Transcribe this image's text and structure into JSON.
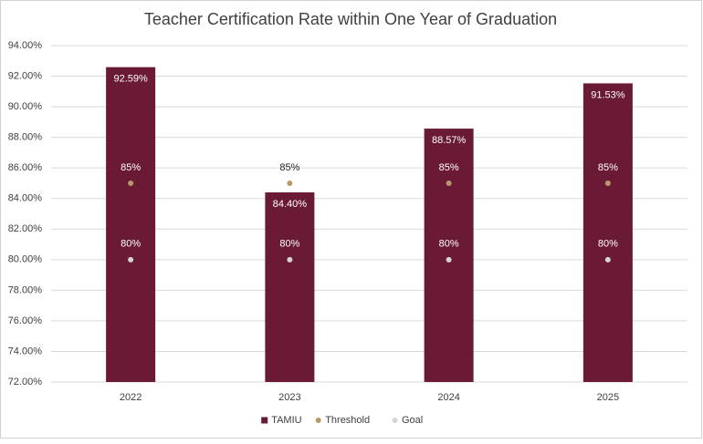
{
  "chart_data": {
    "type": "bar",
    "title": "Teacher Certification Rate within One Year of Graduation",
    "categories": [
      "2022",
      "2023",
      "2024",
      "2025"
    ],
    "series": [
      {
        "name": "TAMIU",
        "type": "bar",
        "color": "#6b1a35",
        "values": [
          92.59,
          84.4,
          88.57,
          91.53
        ],
        "value_labels": [
          "92.59%",
          "84.40%",
          "88.57%",
          "91.53%"
        ]
      },
      {
        "name": "Threshold",
        "type": "scatter",
        "color": "#b8996a",
        "values": [
          85,
          85,
          85,
          85
        ],
        "value_labels": [
          "85%",
          "85%",
          "85%",
          "85%"
        ]
      },
      {
        "name": "Goal",
        "type": "scatter",
        "color": "#d4d4d4",
        "values": [
          80,
          80,
          80,
          80
        ],
        "value_labels": [
          "80%",
          "80%",
          "80%",
          "80%"
        ]
      }
    ],
    "ylim": [
      72,
      94
    ],
    "yticks": [
      {
        "value": 72,
        "label": "72.00%"
      },
      {
        "value": 74,
        "label": "74.00%"
      },
      {
        "value": 76,
        "label": "76.00%"
      },
      {
        "value": 78,
        "label": "78.00%"
      },
      {
        "value": 80,
        "label": "80.00%"
      },
      {
        "value": 82,
        "label": "82.00%"
      },
      {
        "value": 84,
        "label": "84.00%"
      },
      {
        "value": 86,
        "label": "86.00%"
      },
      {
        "value": 88,
        "label": "88.00%"
      },
      {
        "value": 90,
        "label": "90.00%"
      },
      {
        "value": 92,
        "label": "92.00%"
      },
      {
        "value": 94,
        "label": "94.00%"
      }
    ],
    "grid": true,
    "legend": "bottom"
  }
}
